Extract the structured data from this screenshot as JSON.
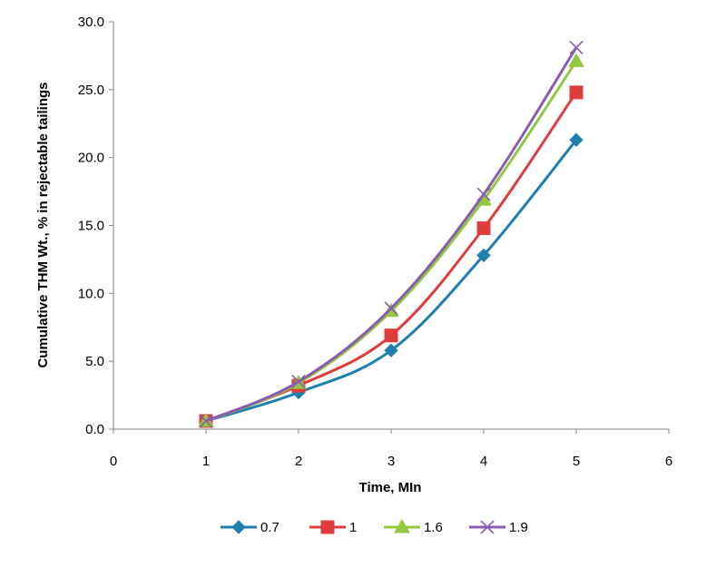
{
  "chart_data": {
    "type": "line",
    "title": "",
    "xlabel": "Time, MIn",
    "ylabel": "Cumulative THM Wt., % in rejectable tailings",
    "xlim": [
      0,
      6
    ],
    "ylim": [
      0,
      30
    ],
    "x_ticks": [
      0,
      1,
      2,
      3,
      4,
      5,
      6
    ],
    "y_ticks": [
      "0.0",
      "5.0",
      "10.0",
      "15.0",
      "20.0",
      "25.0",
      "30.0"
    ],
    "grid": false,
    "smoothed": true,
    "legend_position": "bottom",
    "x": [
      1,
      2,
      3,
      4,
      5
    ],
    "series": [
      {
        "name": "0.7",
        "color": "#1f7fae",
        "marker": "diamond",
        "values": [
          0.6,
          2.7,
          5.8,
          12.8,
          21.3
        ]
      },
      {
        "name": "1",
        "color": "#e03c3c",
        "marker": "square",
        "values": [
          0.6,
          3.2,
          6.9,
          14.8,
          24.8
        ]
      },
      {
        "name": "1.6",
        "color": "#92c83e",
        "marker": "triangle",
        "values": [
          0.6,
          3.4,
          8.7,
          16.9,
          27.1
        ]
      },
      {
        "name": "1.9",
        "color": "#8a5cb0",
        "marker": "x",
        "values": [
          0.6,
          3.5,
          8.9,
          17.3,
          28.1
        ]
      }
    ]
  }
}
